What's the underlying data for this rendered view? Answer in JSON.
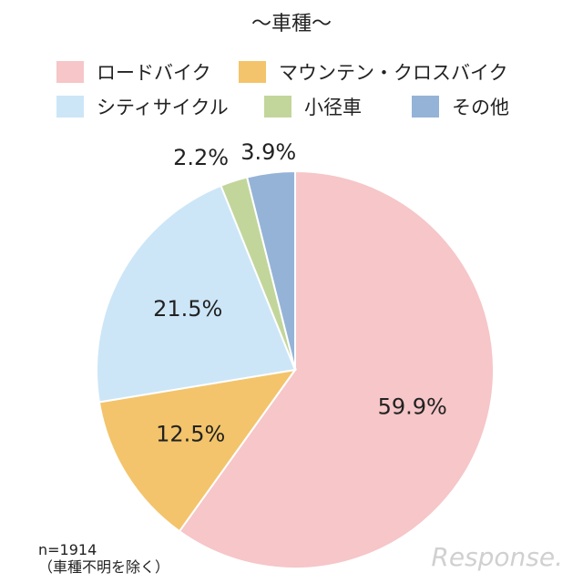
{
  "chart_data": {
    "type": "pie",
    "title": "～車種～",
    "slices": [
      {
        "label": "ロードバイク",
        "value": 59.9,
        "display": "59.9%",
        "color": "#f6c6c8"
      },
      {
        "label": "マウンテン・クロスバイク",
        "value": 12.5,
        "display": "12.5%",
        "color": "#f3c46b"
      },
      {
        "label": "シティサイクル",
        "value": 21.5,
        "display": "21.5%",
        "color": "#cce6f7"
      },
      {
        "label": "小径車",
        "value": 2.2,
        "display": "2.2%",
        "color": "#c2d69b"
      },
      {
        "label": "その他",
        "value": 3.9,
        "display": "3.9%",
        "color": "#95b3d7"
      }
    ],
    "legend_position": "top",
    "start_angle": "12 o'clock",
    "direction": "clockwise"
  },
  "note_line1": "n=1914",
  "note_line2": "（車種不明を除く）",
  "watermark": "Response."
}
